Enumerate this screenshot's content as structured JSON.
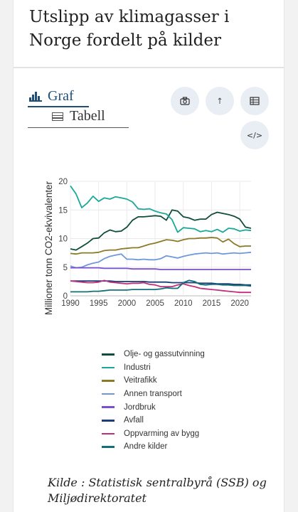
{
  "title": "Utslipp av klimagasser i Norge fordelt på kilder",
  "tabs": {
    "graf": "Graf",
    "tabell": "Tabell"
  },
  "buttons": {
    "camera_icon": "camera-icon",
    "download_icon": "download-icon",
    "table_icon": "table-icon",
    "embed_icon": "embed-icon",
    "embed_label": "</>"
  },
  "source": "Kilde : Statistisk sentralbyrå (SSB) og Miljødirektoratet",
  "chart_data": {
    "type": "line",
    "title": "",
    "xlabel": "",
    "ylabel": "Millioner tonn CO2-ekvivalenter",
    "xlim": [
      1990,
      2022
    ],
    "ylim": [
      0,
      20
    ],
    "x_ticks": [
      1990,
      1995,
      2000,
      2005,
      2010,
      2015,
      2020
    ],
    "y_ticks": [
      0,
      5,
      10,
      15,
      20
    ],
    "grid": true,
    "legend": "bottom",
    "x": [
      1990,
      1991,
      1992,
      1993,
      1994,
      1995,
      1996,
      1997,
      1998,
      1999,
      2000,
      2001,
      2002,
      2003,
      2004,
      2005,
      2006,
      2007,
      2008,
      2009,
      2010,
      2011,
      2012,
      2013,
      2014,
      2015,
      2016,
      2017,
      2018,
      2019,
      2020,
      2021,
      2022
    ],
    "series": [
      {
        "name": "Olje- og gassutvinning",
        "color": "#0f4d3c",
        "values": [
          8.2,
          8.0,
          8.6,
          9.2,
          10.0,
          10.1,
          11.0,
          11.5,
          11.2,
          11.3,
          12.0,
          13.2,
          13.8,
          13.8,
          13.9,
          14.0,
          13.9,
          13.2,
          15.0,
          14.8,
          13.8,
          13.6,
          13.2,
          13.4,
          13.4,
          14.2,
          14.6,
          14.4,
          14.2,
          13.9,
          13.4,
          12.0,
          11.8
        ]
      },
      {
        "name": "Industri",
        "color": "#1aa898",
        "values": [
          19.2,
          17.8,
          15.4,
          16.2,
          17.4,
          16.5,
          17.1,
          16.9,
          17.3,
          17.1,
          16.9,
          16.4,
          15.2,
          15.1,
          15.2,
          14.8,
          14.5,
          14.3,
          13.3,
          11.1,
          11.9,
          11.8,
          11.7,
          11.2,
          11.4,
          11.2,
          11.6,
          11.1,
          11.8,
          11.7,
          11.3,
          11.5,
          11.4
        ]
      },
      {
        "name": "Veitrafikk",
        "color": "#8b7a26",
        "values": [
          7.4,
          7.3,
          7.5,
          7.5,
          7.5,
          7.6,
          7.9,
          8.0,
          8.0,
          8.2,
          8.3,
          8.4,
          8.4,
          8.7,
          9.0,
          9.2,
          9.5,
          9.8,
          9.7,
          9.5,
          9.8,
          10.0,
          10.0,
          10.1,
          10.1,
          10.2,
          10.1,
          9.4,
          9.9,
          9.1,
          8.6,
          8.7,
          8.7
        ]
      },
      {
        "name": "Annen transport",
        "color": "#6f98dc",
        "values": [
          5.2,
          4.9,
          5.0,
          5.4,
          5.7,
          5.9,
          6.5,
          6.9,
          7.1,
          7.3,
          6.4,
          6.4,
          6.3,
          6.4,
          6.3,
          6.3,
          6.5,
          7.0,
          6.8,
          6.6,
          6.9,
          7.1,
          7.3,
          7.4,
          7.5,
          7.4,
          7.5,
          7.3,
          7.4,
          7.5,
          7.4,
          7.5,
          7.6
        ]
      },
      {
        "name": "Jordbruk",
        "color": "#7950cf",
        "values": [
          4.9,
          4.9,
          4.9,
          4.9,
          4.9,
          4.9,
          4.8,
          4.8,
          4.8,
          4.8,
          4.8,
          4.7,
          4.7,
          4.7,
          4.7,
          4.7,
          4.6,
          4.6,
          4.6,
          4.6,
          4.6,
          4.6,
          4.6,
          4.6,
          4.6,
          4.6,
          4.6,
          4.6,
          4.6,
          4.6,
          4.6,
          4.6,
          4.6
        ]
      },
      {
        "name": "Avfall",
        "color": "#1c3d75",
        "values": [
          2.6,
          2.6,
          2.6,
          2.6,
          2.6,
          2.6,
          2.6,
          2.6,
          2.5,
          2.5,
          2.5,
          2.5,
          2.5,
          2.5,
          2.4,
          2.4,
          2.4,
          2.4,
          2.3,
          2.3,
          2.3,
          2.3,
          2.3,
          2.2,
          2.2,
          2.2,
          2.1,
          2.1,
          2.1,
          2.0,
          2.0,
          1.9,
          1.9
        ]
      },
      {
        "name": "Oppvarming av bygg",
        "color": "#c0307a",
        "values": [
          2.6,
          2.5,
          2.4,
          2.3,
          2.3,
          2.4,
          2.7,
          2.4,
          2.3,
          2.2,
          2.1,
          2.2,
          2.2,
          2.3,
          2.0,
          1.9,
          1.6,
          1.6,
          1.6,
          1.9,
          2.1,
          1.8,
          1.6,
          1.3,
          1.2,
          1.1,
          1.0,
          0.9,
          0.8,
          0.7,
          0.6,
          0.6,
          0.6
        ]
      },
      {
        "name": "Andre kilder",
        "color": "#137078",
        "values": [
          0.7,
          0.7,
          0.7,
          0.7,
          0.8,
          0.8,
          0.9,
          1.0,
          1.0,
          1.0,
          1.0,
          1.1,
          1.1,
          1.1,
          1.1,
          1.1,
          1.2,
          1.4,
          1.3,
          1.3,
          2.3,
          2.7,
          2.5,
          2.0,
          1.9,
          2.0,
          2.0,
          1.9,
          1.9,
          1.8,
          1.8,
          1.8,
          1.7
        ]
      }
    ]
  }
}
